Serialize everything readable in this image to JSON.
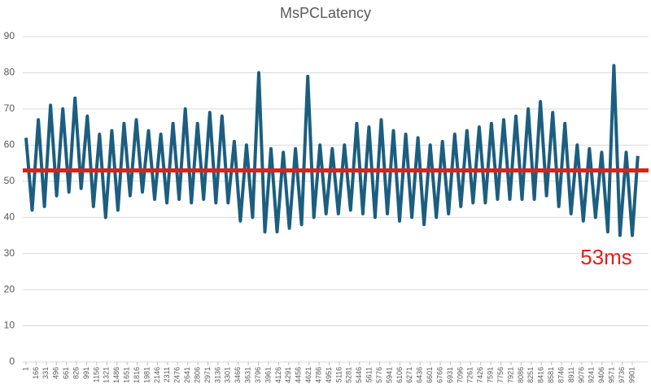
{
  "chart_data": {
    "type": "line",
    "title": "MsPCLatency",
    "x": [
      1,
      101,
      201,
      301,
      401,
      501,
      601,
      701,
      801,
      901,
      1001,
      1101,
      1201,
      1301,
      1401,
      1501,
      1601,
      1701,
      1801,
      1901,
      2001,
      2101,
      2201,
      2301,
      2401,
      2501,
      2601,
      2701,
      2801,
      2901,
      3001,
      3101,
      3201,
      3301,
      3401,
      3501,
      3601,
      3701,
      3801,
      3901,
      4001,
      4101,
      4201,
      4301,
      4401,
      4501,
      4601,
      4701,
      4801,
      4901,
      5001,
      5101,
      5201,
      5301,
      5401,
      5501,
      5601,
      5701,
      5801,
      5901,
      6001,
      6101,
      6201,
      6301,
      6401,
      6501,
      6601,
      6701,
      6801,
      6901,
      7001,
      7101,
      7201,
      7301,
      7401,
      7501,
      7601,
      7701,
      7801,
      7901,
      8001,
      8101,
      8201,
      8301,
      8401,
      8501,
      8601,
      8701,
      8801,
      8901,
      9001,
      9101,
      9201,
      9301,
      9401,
      9501,
      9601,
      9701,
      9801,
      9901,
      9991
    ],
    "series": [
      {
        "name": "MsPCLatency",
        "color": "#1b5e80",
        "values": [
          62,
          42,
          67,
          43,
          71,
          46,
          70,
          47,
          73,
          48,
          68,
          43,
          63,
          40,
          64,
          42,
          66,
          46,
          67,
          47,
          64,
          45,
          63,
          44,
          66,
          45,
          70,
          44,
          66,
          45,
          69,
          44,
          68,
          44,
          61,
          39,
          60,
          40,
          80,
          36,
          59,
          36,
          58,
          37,
          59,
          38,
          79,
          40,
          60,
          41,
          59,
          41,
          60,
          42,
          66,
          41,
          65,
          40,
          67,
          41,
          64,
          39,
          63,
          40,
          62,
          38,
          60,
          40,
          61,
          41,
          63,
          43,
          64,
          44,
          65,
          44,
          66,
          45,
          67,
          45,
          68,
          45,
          70,
          45,
          72,
          46,
          69,
          43,
          66,
          41,
          60,
          39,
          59,
          40,
          58,
          36,
          82,
          35,
          58,
          35,
          57
        ]
      }
    ],
    "reference_line": {
      "value": 53,
      "label": "53ms",
      "color": "#e0201b"
    },
    "xlim": [
      1,
      10141
    ],
    "xticks": [
      1,
      166,
      331,
      496,
      661,
      826,
      991,
      1156,
      1321,
      1486,
      1651,
      1816,
      1981,
      2146,
      2311,
      2476,
      2641,
      2806,
      2971,
      3136,
      3301,
      3466,
      3631,
      3796,
      3961,
      4126,
      4291,
      4456,
      4621,
      4786,
      4951,
      5116,
      5281,
      5446,
      5611,
      5776,
      5941,
      6106,
      6271,
      6436,
      6601,
      6766,
      6931,
      7096,
      7261,
      7426,
      7591,
      7756,
      7921,
      8086,
      8251,
      8416,
      8581,
      8746,
      8911,
      9076,
      9241,
      9406,
      9571,
      9736,
      9901
    ],
    "ylim": [
      0,
      90
    ],
    "yticks": [
      0,
      10,
      20,
      30,
      40,
      50,
      60,
      70,
      80,
      90
    ],
    "grid": true
  }
}
